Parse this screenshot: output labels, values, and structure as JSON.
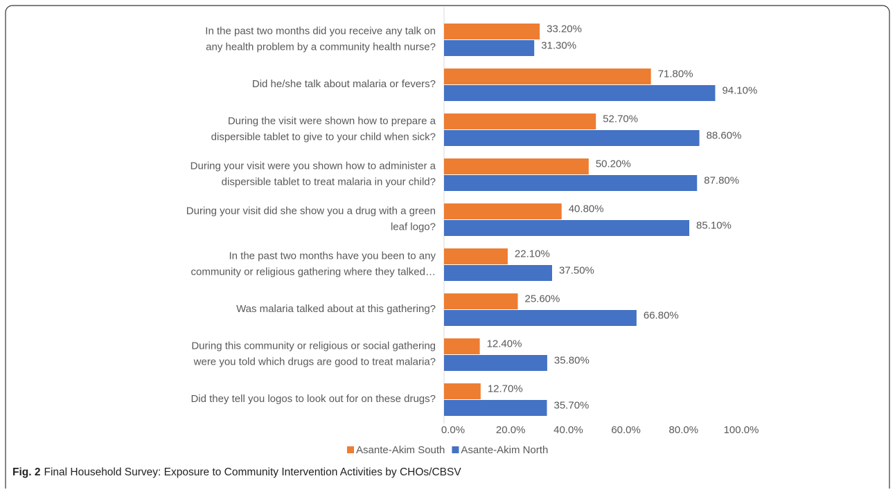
{
  "chart_data": {
    "type": "bar",
    "categories": [
      [
        "In the past two months did you receive any talk on",
        "any health problem by a community health nurse?"
      ],
      [
        "Did he/she talk about malaria or fevers?"
      ],
      [
        "During the visit were shown how to prepare a",
        "dispersible tablet to give to your child when sick?"
      ],
      [
        "During your visit were you shown how to administer a",
        "dispersible tablet to treat malaria in your child?"
      ],
      [
        "During your visit did she show you a drug with a green",
        "leaf logo?"
      ],
      [
        "In the past two months have you been to any",
        "community or religious gathering where they talked…"
      ],
      [
        "Was malaria talked about at this gathering?"
      ],
      [
        "During this community or religious or social gathering",
        "were you told which drugs are good to treat malaria?"
      ],
      [
        "Did they tell you logos to look out for on these drugs?"
      ]
    ],
    "series": [
      {
        "name": "Asante-Akim South",
        "color": "#ed7d31",
        "values": [
          33.2,
          71.8,
          52.7,
          50.2,
          40.8,
          22.1,
          25.6,
          12.4,
          12.7
        ],
        "value_labels": [
          "33.20%",
          "71.80%",
          "52.70%",
          "50.20%",
          "40.80%",
          "22.10%",
          "25.60%",
          "12.40%",
          "12.70%"
        ]
      },
      {
        "name": "Asante-Akim North",
        "color": "#4472c4",
        "values": [
          31.3,
          94.1,
          88.6,
          87.8,
          85.1,
          37.5,
          66.8,
          35.8,
          35.7
        ],
        "value_labels": [
          "31.30%",
          "94.10%",
          "88.60%",
          "87.80%",
          "85.10%",
          "37.50%",
          "66.80%",
          "35.80%",
          "35.70%"
        ]
      }
    ],
    "xlim": [
      0,
      100
    ],
    "xticks": [
      {
        "value": 0,
        "label": "0.0%"
      },
      {
        "value": 20,
        "label": "20.0%"
      },
      {
        "value": 40,
        "label": "40.0%"
      },
      {
        "value": 60,
        "label": "60.0%"
      },
      {
        "value": 80,
        "label": "80.0%"
      },
      {
        "value": 100,
        "label": "100.0%"
      }
    ],
    "grid": false,
    "legend": "bottom",
    "caption": {
      "label": "Fig. 2",
      "text": "Final Household Survey: Exposure to Community Intervention Activities by CHOs/CBSV"
    }
  }
}
